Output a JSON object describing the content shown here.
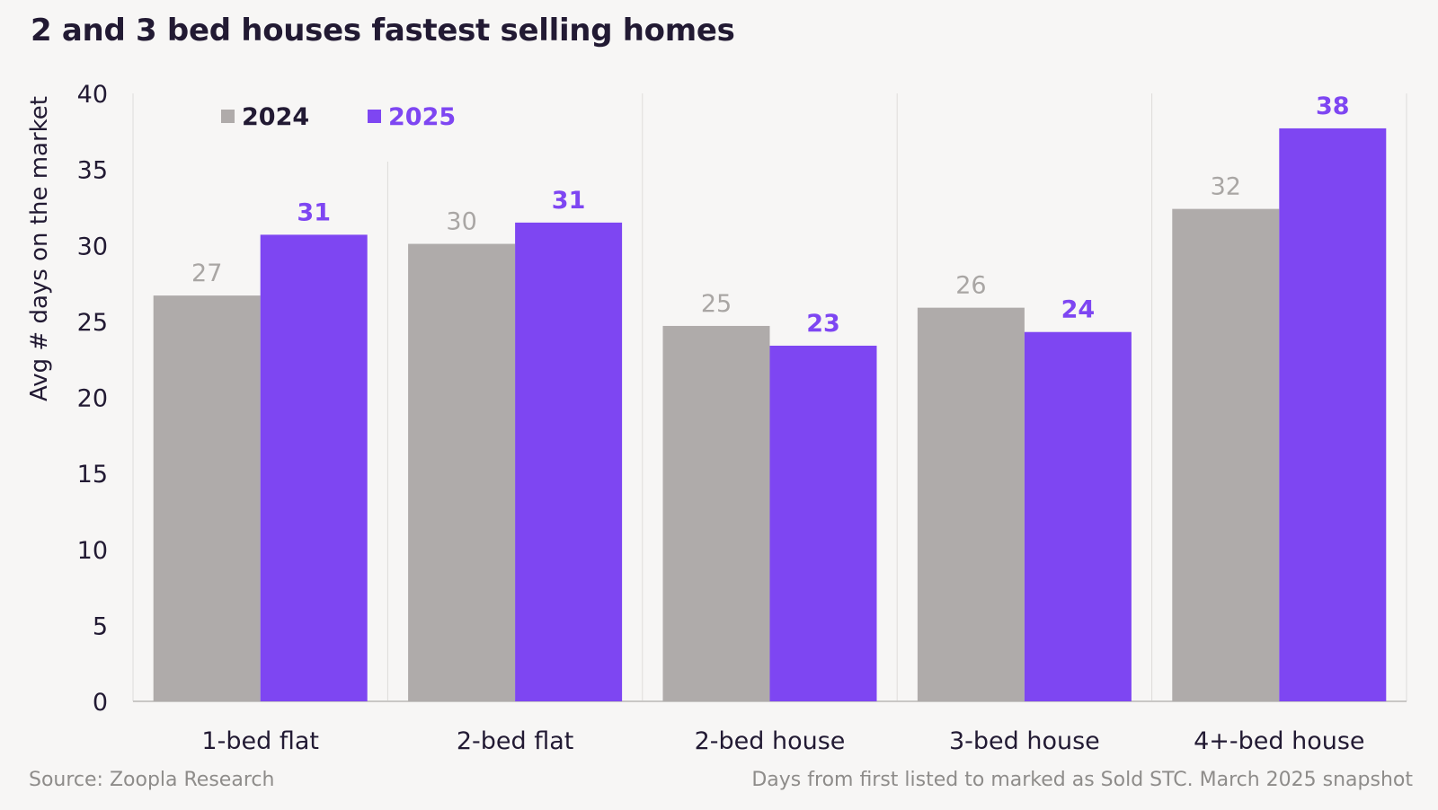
{
  "title": "2 and 3 bed houses fastest selling homes",
  "source": "Source: Zoopla Research",
  "note": "Days from first listed to marked as Sold STC. March 2025 snapshot",
  "colors": {
    "series_2024": "#afabaa",
    "series_2025": "#7e46f2",
    "label_2024": "#a9a6a4",
    "label_2025": "#7e46f2",
    "text": "#221a33",
    "grid": "#dedcda",
    "axis": "#c9c7c5",
    "background": "#f7f6f5"
  },
  "chart_data": {
    "type": "bar",
    "categories": [
      "1-bed flat",
      "2-bed flat",
      "2-bed house",
      "3-bed house",
      "4+-bed house"
    ],
    "series": [
      {
        "name": "2024",
        "values": [
          26.7,
          30.1,
          24.7,
          25.9,
          32.4
        ],
        "labels": [
          "27",
          "30",
          "25",
          "26",
          "32"
        ]
      },
      {
        "name": "2025",
        "values": [
          30.7,
          31.5,
          23.4,
          24.3,
          37.7
        ],
        "labels": [
          "31",
          "31",
          "23",
          "24",
          "38"
        ]
      }
    ],
    "ylabel": "Avg # days on the market",
    "xlabel": "",
    "ylim": [
      0,
      40
    ],
    "yticks": [
      "0",
      "5",
      "10",
      "15",
      "20",
      "25",
      "30",
      "35",
      "40"
    ],
    "grid": "vertical separators between categories",
    "legend": "top-left"
  }
}
